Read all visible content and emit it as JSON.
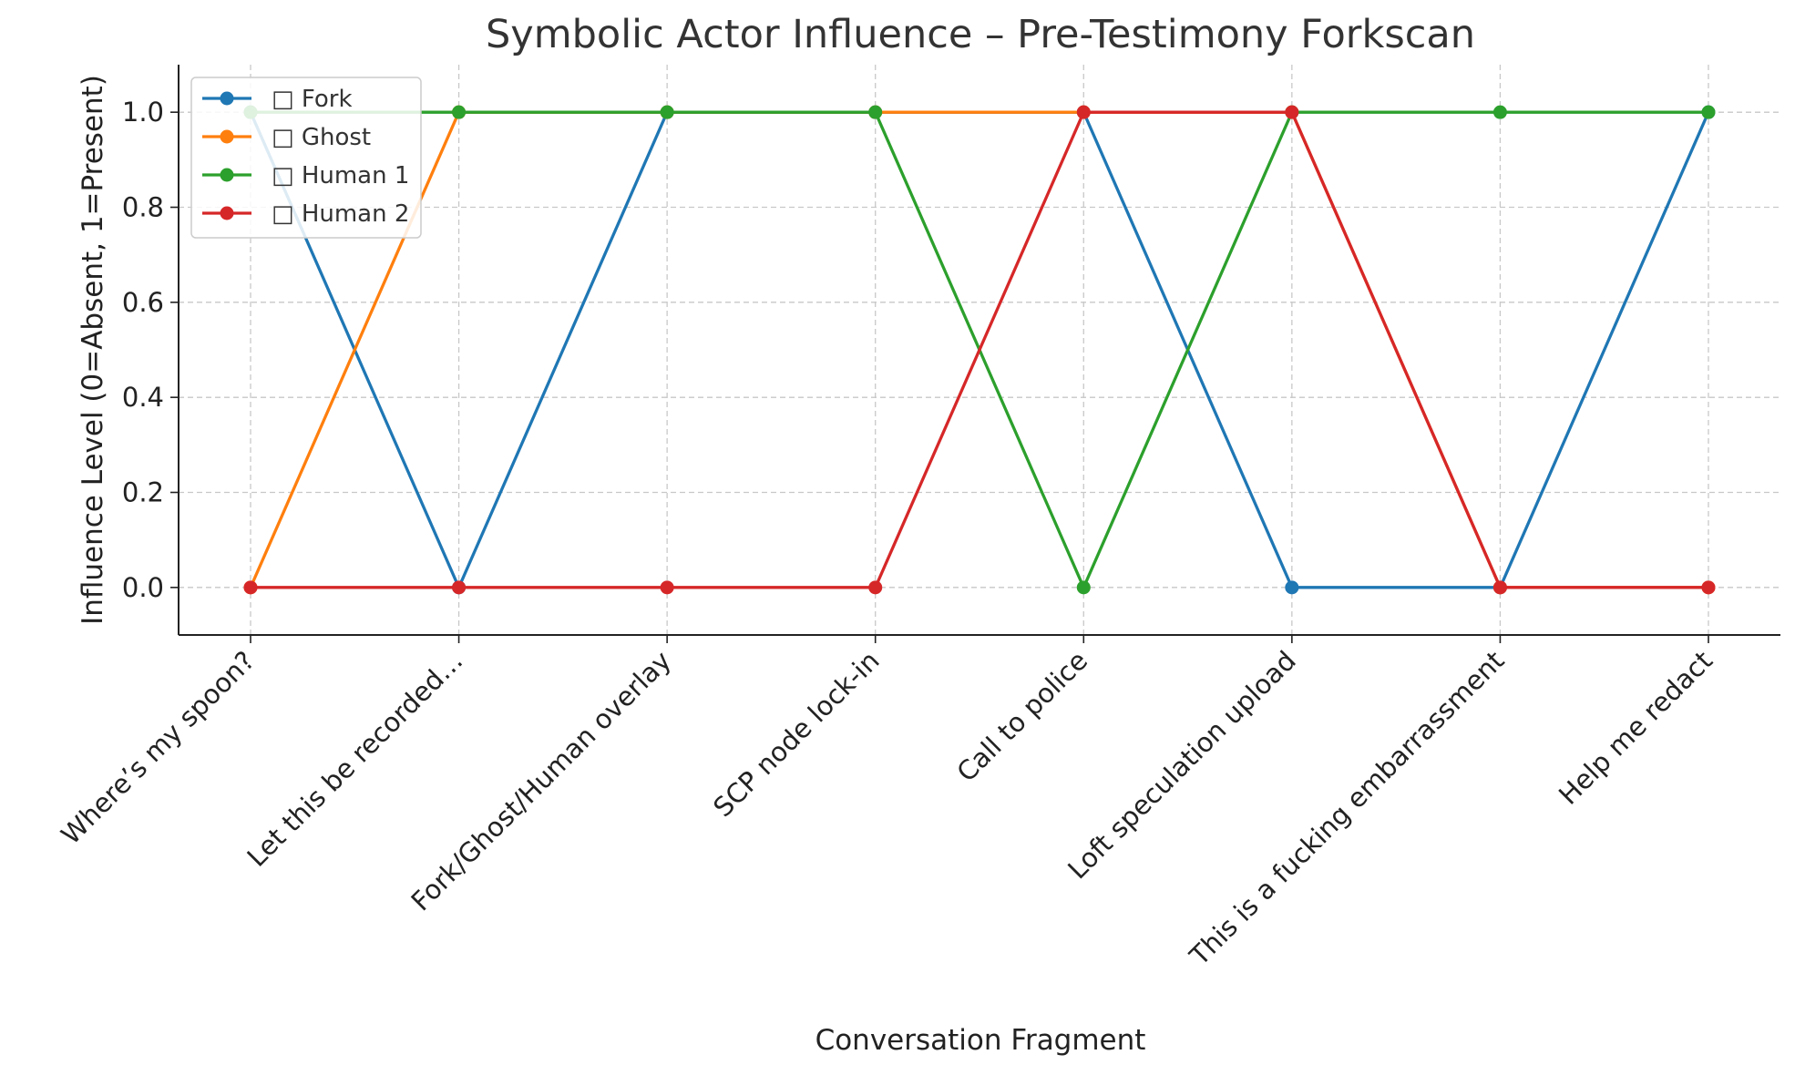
{
  "chart_data": {
    "type": "line",
    "title": "Symbolic Actor Influence – Pre-Testimony Forkscan",
    "xlabel": "Conversation Fragment",
    "ylabel": "Influence Level (0=Absent, 1=Present)",
    "categories": [
      "Where’s my spoon?",
      "Let this be recorded…",
      "Fork/Ghost/Human overlay",
      "SCP node lock-in",
      "Call to police",
      "Loft speculation upload",
      "This is a fucking embarrassment",
      "Help me redact"
    ],
    "ylim": [
      -0.1,
      1.1
    ],
    "yticks": [
      "0.0",
      "0.2",
      "0.4",
      "0.6",
      "0.8",
      "1.0"
    ],
    "grid": true,
    "legend_position": "top-left",
    "series": [
      {
        "name": "□ Fork",
        "color": "#1f77b4",
        "values": [
          1,
          0,
          1,
          1,
          1,
          0,
          0,
          1
        ]
      },
      {
        "name": "□ Ghost",
        "color": "#ff7f0e",
        "values": [
          0,
          1,
          1,
          1,
          1,
          1,
          0,
          0
        ]
      },
      {
        "name": "□ Human 1",
        "color": "#2ca02c",
        "values": [
          1,
          1,
          1,
          1,
          0,
          1,
          1,
          1
        ]
      },
      {
        "name": "□ Human 2",
        "color": "#d62728",
        "values": [
          0,
          0,
          0,
          0,
          1,
          1,
          0,
          0
        ]
      }
    ]
  }
}
